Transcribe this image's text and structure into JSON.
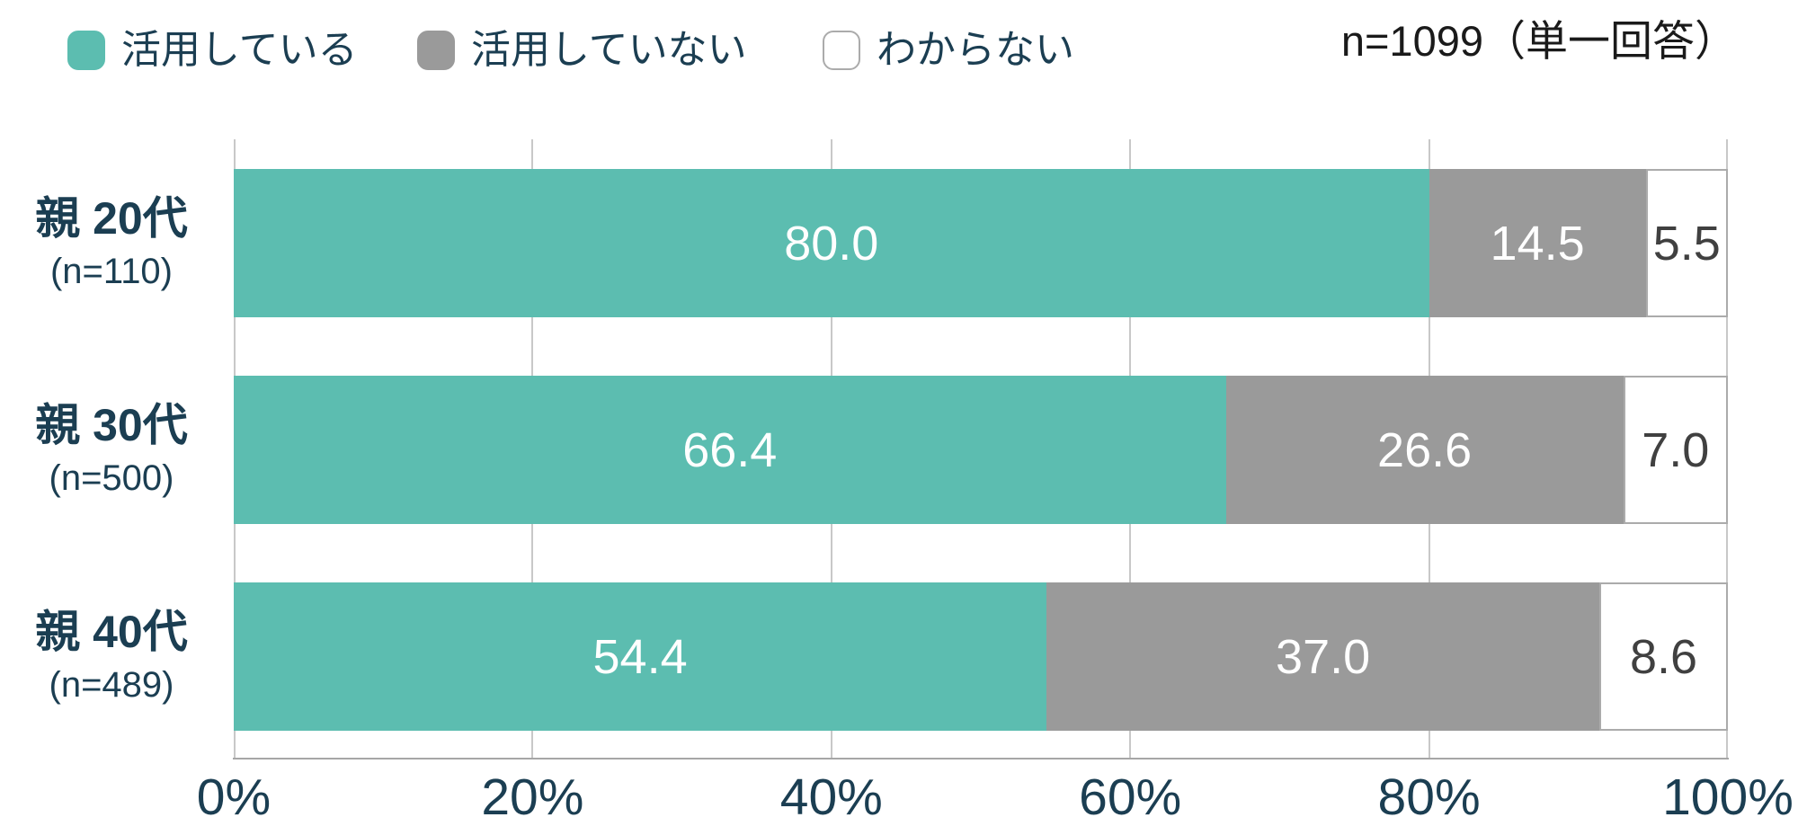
{
  "legend": {
    "items": [
      {
        "label": "活用している",
        "color": "#5CBDB0",
        "border": "#5CBDB0"
      },
      {
        "label": "活用していない",
        "color": "#9A9A9A",
        "border": "#9A9A9A"
      },
      {
        "label": "わからない",
        "color": "#FFFFFF",
        "border": "#ABABAB"
      }
    ]
  },
  "note": "n=1099（単一回答）",
  "chart_data": {
    "type": "bar",
    "stacked": true,
    "orientation": "horizontal",
    "title": "",
    "categories": [
      "親 20代",
      "親 30代",
      "親 40代"
    ],
    "category_notes": [
      "(n=110)",
      "(n=500)",
      "(n=489)"
    ],
    "series": [
      {
        "name": "活用している",
        "color": "#5CBDB0",
        "values": [
          80.0,
          66.4,
          54.4
        ]
      },
      {
        "name": "活用していない",
        "color": "#9A9A9A",
        "values": [
          14.5,
          26.6,
          37.0
        ]
      },
      {
        "name": "わからない",
        "color": "#FFFFFF",
        "values": [
          5.5,
          7.0,
          8.6
        ]
      }
    ],
    "value_labels": [
      [
        "80.0",
        "14.5",
        "5.5"
      ],
      [
        "66.4",
        "26.6",
        "7.0"
      ],
      [
        "54.4",
        "37.0",
        "8.6"
      ]
    ],
    "x_ticks": [
      "0%",
      "20%",
      "40%",
      "60%",
      "80%",
      "100%"
    ],
    "xlim": [
      0,
      100
    ],
    "grid": true,
    "legend_position": "top"
  },
  "colors": {
    "label_text": "#1B3E52",
    "value_text_on_fill": "#FFFFFF",
    "value_text_on_white": "#404040",
    "note_text": "#1A1A1A",
    "gridline": "#C8C8C8",
    "axis_line": "#A6A6A6",
    "background": "#FFFFFF"
  }
}
